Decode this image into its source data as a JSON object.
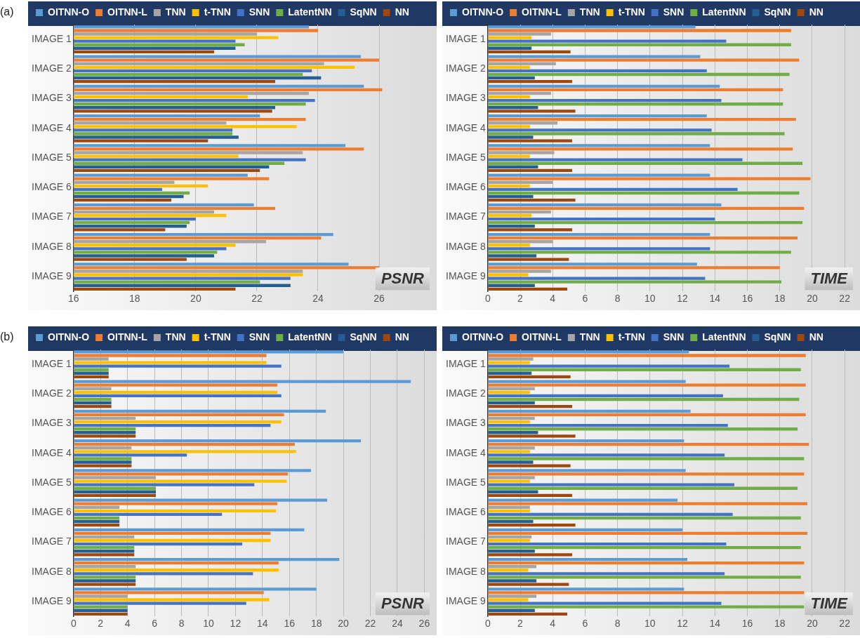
{
  "chart_data": [
    {
      "type": "bar",
      "orientation": "horizontal",
      "title": "PSNR",
      "annotations": [
        "(a)"
      ],
      "legend": "top",
      "grid": "x",
      "xlim": [
        16,
        27.7
      ],
      "xticks": [
        16,
        18,
        20,
        22,
        24,
        26
      ],
      "categories": [
        "IMAGE 1",
        "IMAGE 2",
        "IMAGE 3",
        "IMAGE 4",
        "IMAGE 5",
        "IMAGE 6",
        "IMAGE 7",
        "IMAGE 8",
        "IMAGE 9"
      ],
      "series": [
        {
          "name": "OITNN-O",
          "color": "#5b9bd5",
          "values": [
            23.7,
            25.4,
            25.5,
            22.1,
            24.9,
            21.7,
            21.9,
            24.5,
            25.0
          ]
        },
        {
          "name": "OITNN-L",
          "color": "#ed7d31",
          "values": [
            24.0,
            26.0,
            26.1,
            23.6,
            25.5,
            22.4,
            22.6,
            24.1,
            26.0
          ]
        },
        {
          "name": "TNN",
          "color": "#a5a5a5",
          "values": [
            22.0,
            24.2,
            23.7,
            21.0,
            23.5,
            19.3,
            20.6,
            22.3,
            23.5
          ]
        },
        {
          "name": "t-TNN",
          "color": "#ffc000",
          "values": [
            22.7,
            25.2,
            21.7,
            23.3,
            21.4,
            20.4,
            21.0,
            21.3,
            23.5
          ]
        },
        {
          "name": "SNN",
          "color": "#4472c4",
          "values": [
            21.3,
            23.8,
            23.9,
            21.2,
            23.6,
            18.9,
            20.0,
            21.0,
            23.1
          ]
        },
        {
          "name": "LatentNN",
          "color": "#70ad47",
          "values": [
            21.6,
            23.5,
            23.6,
            21.2,
            22.9,
            19.8,
            19.8,
            20.7,
            22.1
          ]
        },
        {
          "name": "SqNN",
          "color": "#255e91",
          "values": [
            21.3,
            24.1,
            22.6,
            21.4,
            22.4,
            19.6,
            19.7,
            20.6,
            23.1
          ]
        },
        {
          "name": "NN",
          "color": "#9e480e",
          "values": [
            20.6,
            22.6,
            22.5,
            20.4,
            22.1,
            19.2,
            19.0,
            19.7,
            21.3
          ]
        }
      ]
    },
    {
      "type": "bar",
      "orientation": "horizontal",
      "title": "TIME",
      "legend": "top",
      "grid": "x",
      "xlim": [
        0,
        22.6
      ],
      "xticks": [
        0,
        2,
        4,
        6,
        8,
        10,
        12,
        14,
        16,
        18,
        20,
        22
      ],
      "categories": [
        "IMAGE 1",
        "IMAGE 2",
        "IMAGE 3",
        "IMAGE 4",
        "IMAGE 5",
        "IMAGE 6",
        "IMAGE 7",
        "IMAGE 8",
        "IMAGE 9"
      ],
      "series": [
        {
          "name": "OITNN-O",
          "color": "#5b9bd5",
          "values": [
            12.8,
            13.1,
            14.3,
            13.5,
            13.7,
            13.7,
            14.4,
            13.7,
            12.9
          ]
        },
        {
          "name": "OITNN-L",
          "color": "#ed7d31",
          "values": [
            18.7,
            19.2,
            18.2,
            19.0,
            18.8,
            19.9,
            19.5,
            19.1,
            18.0
          ]
        },
        {
          "name": "TNN",
          "color": "#a5a5a5",
          "values": [
            3.9,
            4.2,
            3.9,
            4.3,
            4.1,
            4.0,
            3.9,
            4.0,
            3.9
          ]
        },
        {
          "name": "t-TNN",
          "color": "#ffc000",
          "values": [
            2.7,
            2.6,
            2.6,
            2.6,
            2.6,
            2.6,
            2.7,
            2.6,
            2.5
          ]
        },
        {
          "name": "SNN",
          "color": "#4472c4",
          "values": [
            14.7,
            13.5,
            14.4,
            13.8,
            15.7,
            15.4,
            14.0,
            13.7,
            13.4
          ]
        },
        {
          "name": "LatentNN",
          "color": "#70ad47",
          "values": [
            18.7,
            18.6,
            18.2,
            18.3,
            19.4,
            19.2,
            19.4,
            18.7,
            18.1
          ]
        },
        {
          "name": "SqNN",
          "color": "#255e91",
          "values": [
            2.7,
            2.9,
            3.1,
            2.8,
            3.1,
            2.8,
            2.9,
            3.0,
            2.9
          ]
        },
        {
          "name": "NN",
          "color": "#9e480e",
          "values": [
            5.1,
            5.2,
            5.4,
            5.2,
            5.2,
            5.4,
            5.2,
            5.0,
            4.9
          ]
        }
      ]
    },
    {
      "type": "bar",
      "orientation": "horizontal",
      "title": "PSNR",
      "annotations": [
        "(b)"
      ],
      "legend": "top",
      "grid": "x",
      "xlim": [
        0,
        26.5
      ],
      "xticks": [
        0,
        2,
        4,
        6,
        8,
        10,
        12,
        14,
        16,
        18,
        20,
        22,
        24,
        26
      ],
      "categories": [
        "IMAGE 1",
        "IMAGE 2",
        "IMAGE 3",
        "IMAGE 4",
        "IMAGE 5",
        "IMAGE 6",
        "IMAGE 7",
        "IMAGE 8",
        "IMAGE 9"
      ],
      "series": [
        {
          "name": "OITNN-O",
          "color": "#5b9bd5",
          "values": [
            20.0,
            25.0,
            18.7,
            21.3,
            17.6,
            18.8,
            17.1,
            19.7,
            18.0
          ]
        },
        {
          "name": "OITNN-L",
          "color": "#ed7d31",
          "values": [
            14.3,
            15.1,
            15.6,
            16.4,
            15.9,
            15.1,
            14.6,
            15.2,
            14.1
          ]
        },
        {
          "name": "TNN",
          "color": "#a5a5a5",
          "values": [
            2.6,
            2.8,
            4.6,
            4.3,
            6.1,
            3.4,
            4.5,
            4.6,
            4.0
          ]
        },
        {
          "name": "t-TNN",
          "color": "#ffc000",
          "values": [
            14.3,
            15.1,
            15.4,
            16.5,
            15.8,
            15.0,
            14.6,
            15.2,
            14.5
          ]
        },
        {
          "name": "SNN",
          "color": "#4472c4",
          "values": [
            15.4,
            15.4,
            14.6,
            8.4,
            13.4,
            11.0,
            12.5,
            13.3,
            12.8
          ]
        },
        {
          "name": "LatentNN",
          "color": "#70ad47",
          "values": [
            2.6,
            2.8,
            4.6,
            4.3,
            6.1,
            3.4,
            4.5,
            4.6,
            4.0
          ]
        },
        {
          "name": "SqNN",
          "color": "#255e91",
          "values": [
            2.6,
            2.8,
            4.6,
            4.3,
            6.1,
            3.4,
            4.5,
            4.6,
            4.0
          ]
        },
        {
          "name": "NN",
          "color": "#9e480e",
          "values": [
            2.6,
            2.8,
            4.6,
            4.3,
            6.1,
            3.4,
            4.5,
            4.6,
            4.0
          ]
        }
      ]
    },
    {
      "type": "bar",
      "orientation": "horizontal",
      "title": "TIME",
      "legend": "top",
      "grid": "x",
      "xlim": [
        0,
        22.6
      ],
      "xticks": [
        0,
        2,
        4,
        6,
        8,
        10,
        12,
        14,
        16,
        18,
        20,
        22
      ],
      "categories": [
        "IMAGE 1",
        "IMAGE 2",
        "IMAGE 3",
        "IMAGE 4",
        "IMAGE 5",
        "IMAGE 6",
        "IMAGE 7",
        "IMAGE 8",
        "IMAGE 9"
      ],
      "series": [
        {
          "name": "OITNN-O",
          "color": "#5b9bd5",
          "values": [
            12.4,
            12.2,
            12.5,
            12.1,
            12.2,
            11.7,
            12.0,
            12.3,
            12.1
          ]
        },
        {
          "name": "OITNN-L",
          "color": "#ed7d31",
          "values": [
            19.6,
            19.6,
            19.6,
            19.8,
            19.5,
            19.7,
            19.7,
            19.5,
            19.5
          ]
        },
        {
          "name": "TNN",
          "color": "#a5a5a5",
          "values": [
            2.8,
            2.9,
            2.9,
            2.9,
            2.9,
            2.6,
            2.7,
            3.0,
            3.0
          ]
        },
        {
          "name": "t-TNN",
          "color": "#ffc000",
          "values": [
            2.6,
            2.6,
            2.6,
            2.6,
            2.6,
            2.6,
            2.6,
            2.5,
            2.5
          ]
        },
        {
          "name": "SNN",
          "color": "#4472c4",
          "values": [
            14.9,
            14.5,
            14.8,
            14.6,
            15.2,
            15.1,
            14.7,
            14.6,
            14.4
          ]
        },
        {
          "name": "LatentNN",
          "color": "#70ad47",
          "values": [
            19.3,
            19.2,
            19.1,
            19.5,
            19.1,
            19.3,
            19.3,
            19.3,
            19.5
          ]
        },
        {
          "name": "SqNN",
          "color": "#255e91",
          "values": [
            2.7,
            2.9,
            3.1,
            2.8,
            3.1,
            2.8,
            2.9,
            3.0,
            2.9
          ]
        },
        {
          "name": "NN",
          "color": "#9e480e",
          "values": [
            5.1,
            5.2,
            5.4,
            5.1,
            5.2,
            5.4,
            5.2,
            5.0,
            4.9
          ]
        }
      ]
    }
  ]
}
